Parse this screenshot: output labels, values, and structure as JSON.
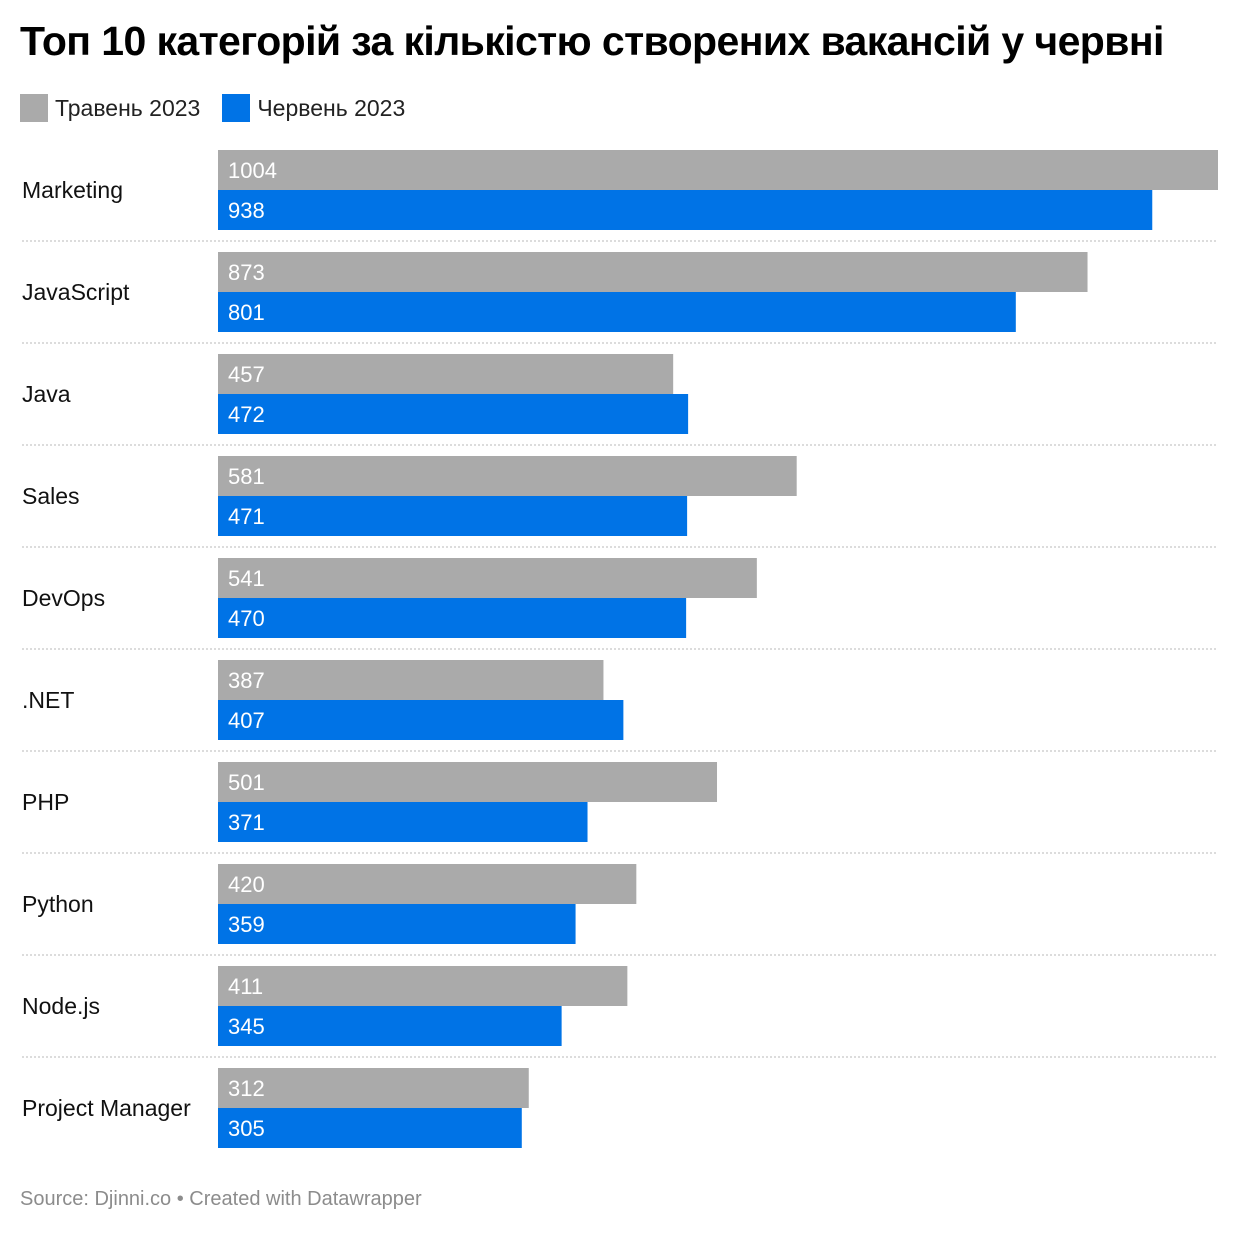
{
  "chart_data": {
    "type": "bar",
    "orientation": "horizontal",
    "title": "Топ 10 категорій за кількістю створених вакансій у червні",
    "categories": [
      "Marketing",
      "JavaScript",
      "Java",
      "Sales",
      "DevOps",
      ".NET",
      "PHP",
      "Python",
      "Node.js",
      "Project Manager"
    ],
    "series": [
      {
        "name": "Травень 2023",
        "color": "#aaaaaa",
        "values": [
          1004,
          873,
          457,
          581,
          541,
          387,
          501,
          420,
          411,
          312
        ]
      },
      {
        "name": "Червень 2023",
        "color": "#0073e6",
        "values": [
          938,
          801,
          472,
          471,
          470,
          407,
          371,
          359,
          345,
          305
        ]
      }
    ],
    "xlim": [
      0,
      1004
    ],
    "grid": false,
    "legend_position": "top-left",
    "source": "Source: Djinni.co • Created with Datawrapper"
  }
}
